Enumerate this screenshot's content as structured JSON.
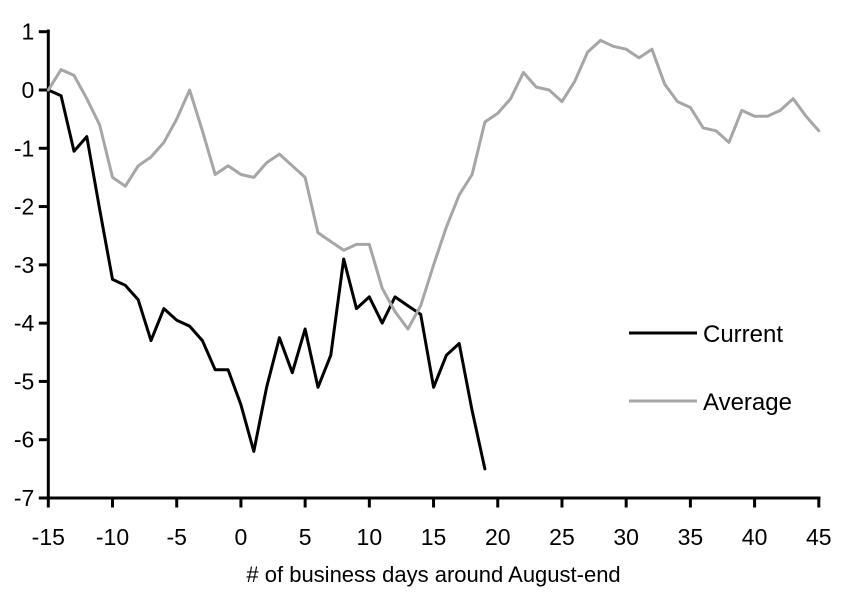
{
  "chart_data": {
    "type": "line",
    "title": "",
    "xlabel": "# of business days around August-end",
    "ylabel": "",
    "xlim": [
      -15,
      45
    ],
    "ylim": [
      -7,
      1
    ],
    "x_ticks": [
      -15,
      -10,
      -5,
      0,
      5,
      10,
      15,
      20,
      25,
      30,
      35,
      40,
      45
    ],
    "y_ticks": [
      1,
      0,
      -1,
      -2,
      -3,
      -4,
      -5,
      -6,
      -7
    ],
    "grid": false,
    "legend_position": "right-middle",
    "series": [
      {
        "name": "Current",
        "color": "#000000",
        "x_start": -15,
        "values": [
          0,
          -0.1,
          -1.05,
          -0.8,
          -2.05,
          -3.25,
          -3.35,
          -3.6,
          -4.3,
          -3.75,
          -3.95,
          -4.05,
          -4.3,
          -4.8,
          -4.8,
          -5.4,
          -6.2,
          -5.1,
          -4.25,
          -4.85,
          -4.1,
          -5.1,
          -4.55,
          -2.9,
          -3.75,
          -3.55,
          -4.0,
          -3.55,
          -3.7,
          -3.85,
          -5.1,
          -4.55,
          -4.35,
          -5.5,
          -6.5
        ]
      },
      {
        "name": "Average",
        "color": "#a6a6a6",
        "x_start": -15,
        "values": [
          0,
          0.35,
          0.25,
          -0.15,
          -0.6,
          -1.5,
          -1.65,
          -1.3,
          -1.15,
          -0.9,
          -0.5,
          0.0,
          -0.7,
          -1.45,
          -1.3,
          -1.45,
          -1.5,
          -1.25,
          -1.1,
          -1.3,
          -1.5,
          -2.45,
          -2.6,
          -2.75,
          -2.65,
          -2.65,
          -3.4,
          -3.8,
          -4.1,
          -3.7,
          -3.0,
          -2.35,
          -1.8,
          -1.45,
          -0.55,
          -0.4,
          -0.15,
          0.3,
          0.05,
          0.0,
          -0.2,
          0.15,
          0.65,
          0.85,
          0.75,
          0.7,
          0.55,
          0.7,
          0.1,
          -0.2,
          -0.3,
          -0.65,
          -0.7,
          -0.9,
          -0.35,
          -0.45,
          -0.45,
          -0.35,
          -0.15,
          -0.45,
          -0.7
        ]
      }
    ],
    "legend": [
      {
        "label": "Current",
        "color": "#000000"
      },
      {
        "label": "Average",
        "color": "#a6a6a6"
      }
    ]
  },
  "colors": {
    "axis": "#000000",
    "background": "#ffffff",
    "current_line": "#000000",
    "average_line": "#a6a6a6"
  }
}
